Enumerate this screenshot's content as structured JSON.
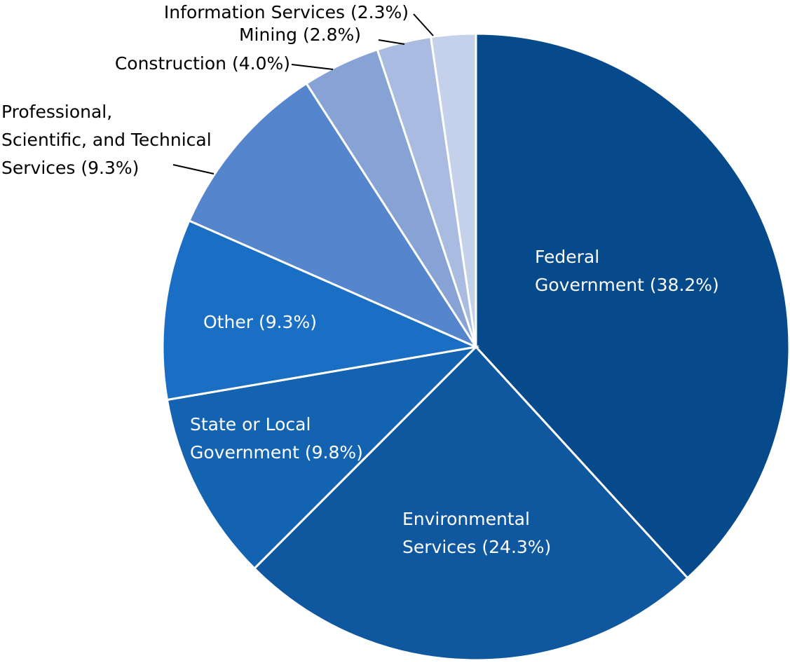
{
  "chart_data": {
    "type": "pie",
    "categories": [
      "Federal\nGovernment",
      "Environmental\nServices",
      "State or Local\nGovernment",
      "Other",
      "Professional,\nScientific, and Technical\nServices",
      "Construction",
      "Mining",
      "Information Services"
    ],
    "values": [
      38.2,
      24.3,
      9.8,
      9.3,
      9.3,
      4.0,
      2.8,
      2.3
    ],
    "value_labels": [
      "(38.2%)",
      "(24.3%)",
      "(9.8%)",
      "(9.3%)",
      "(9.3%)",
      "(4.0%)",
      "(2.8%)",
      "(2.3%)"
    ],
    "colors": [
      "#064a8c",
      "#0f58a0",
      "#1463b0",
      "#1a6fc4",
      "#5585cc",
      "#87a3d6",
      "#a9bbe0",
      "#c5d0ea"
    ]
  }
}
